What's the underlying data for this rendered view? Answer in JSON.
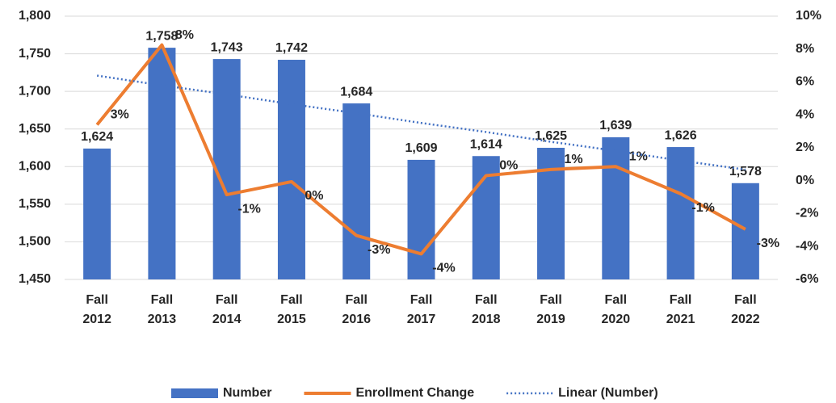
{
  "chart_data": {
    "type": "bar",
    "categories": [
      "Fall 2012",
      "Fall 2013",
      "Fall 2014",
      "Fall 2015",
      "Fall 2016",
      "Fall 2017",
      "Fall 2018",
      "Fall 2019",
      "Fall 2020",
      "Fall 2021",
      "Fall 2022"
    ],
    "series": [
      {
        "name": "Number",
        "type": "bar",
        "color": "#4472c4",
        "values": [
          1624,
          1758,
          1743,
          1742,
          1684,
          1609,
          1614,
          1625,
          1639,
          1626,
          1578
        ],
        "value_labels": [
          "1,624",
          "1,758",
          "1,743",
          "1,742",
          "1,684",
          "1,609",
          "1,614",
          "1,625",
          "1,639",
          "1,626",
          "1,578"
        ]
      },
      {
        "name": "Enrollment Change",
        "type": "line",
        "axis": "y2",
        "color": "#ed7d31",
        "values": [
          3.4,
          8.25,
          -0.85,
          -0.06,
          -3.33,
          -4.45,
          0.31,
          0.68,
          0.86,
          -0.79,
          -2.95
        ],
        "value_labels": [
          "3%",
          "8%",
          "-1%",
          "0%",
          "-3%",
          "-4%",
          "0%",
          "1%",
          "1%",
          "-1%",
          "-3%"
        ]
      },
      {
        "name": "Linear (Number)",
        "type": "trendline",
        "color": "#4472c4",
        "values": [
          1721,
          1708,
          1696,
          1683,
          1671,
          1658,
          1646,
          1633,
          1621,
          1608,
          1596
        ]
      }
    ],
    "ylim": [
      1450,
      1800
    ],
    "yticks": [
      {
        "value": 1450,
        "label": "1,450"
      },
      {
        "value": 1500,
        "label": "1,500"
      },
      {
        "value": 1550,
        "label": "1,550"
      },
      {
        "value": 1600,
        "label": "1,600"
      },
      {
        "value": 1650,
        "label": "1,650"
      },
      {
        "value": 1700,
        "label": "1,700"
      },
      {
        "value": 1750,
        "label": "1,750"
      },
      {
        "value": 1800,
        "label": "1,800"
      }
    ],
    "y2lim": [
      -6,
      10
    ],
    "y2ticks": [
      {
        "value": -6,
        "label": "-6%"
      },
      {
        "value": -4,
        "label": "-4%"
      },
      {
        "value": -2,
        "label": "-2%"
      },
      {
        "value": 0,
        "label": "0%"
      },
      {
        "value": 2,
        "label": "2%"
      },
      {
        "value": 4,
        "label": "4%"
      },
      {
        "value": 6,
        "label": "6%"
      },
      {
        "value": 8,
        "label": "8%"
      },
      {
        "value": 10,
        "label": "10%"
      }
    ],
    "grid": true,
    "legend": "bottom"
  }
}
